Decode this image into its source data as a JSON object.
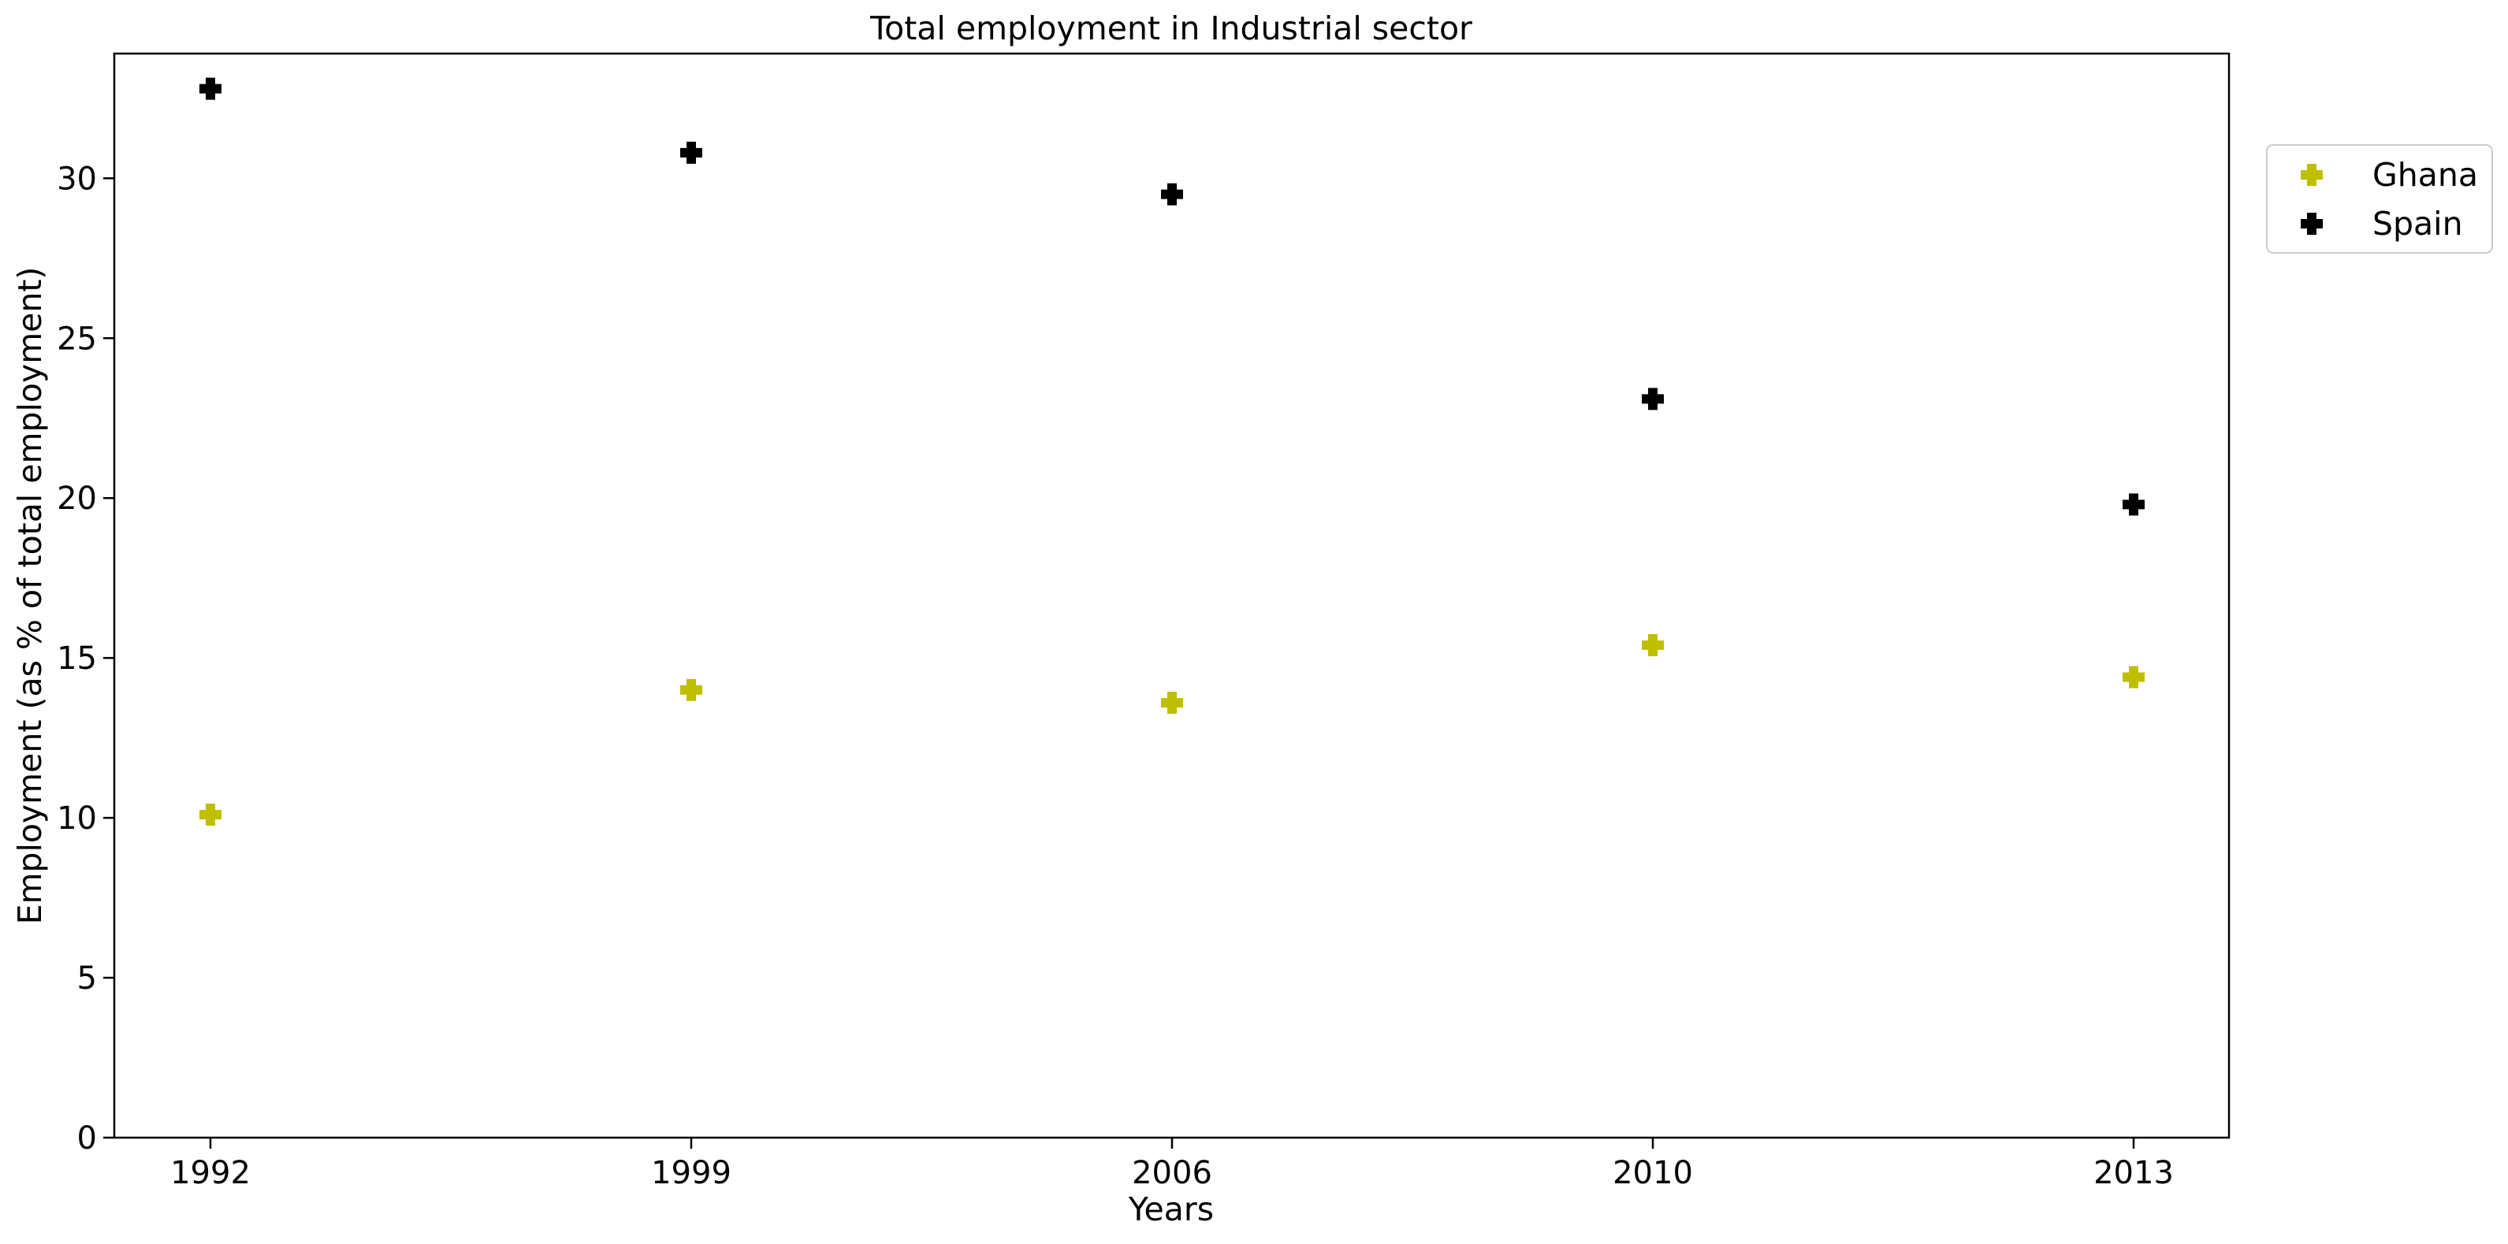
{
  "chart_data": {
    "type": "scatter",
    "title": "Total employment in Industrial sector",
    "xlabel": "Years",
    "ylabel": "Employment (as % of total employment)",
    "categories": [
      "1992",
      "1999",
      "2006",
      "2010",
      "2013"
    ],
    "ylim": [
      0,
      33.9
    ],
    "yticks": [
      0,
      5,
      10,
      15,
      20,
      25,
      30
    ],
    "grid": false,
    "legend_position": "outside-top-right",
    "marker": "plus-filled",
    "series": [
      {
        "name": "Ghana",
        "color": "#bfbf00",
        "values": [
          10.1,
          14.0,
          13.6,
          15.4,
          14.4
        ]
      },
      {
        "name": "Spain",
        "color": "#000000",
        "values": [
          32.8,
          30.8,
          29.5,
          23.1,
          19.8
        ]
      }
    ]
  }
}
